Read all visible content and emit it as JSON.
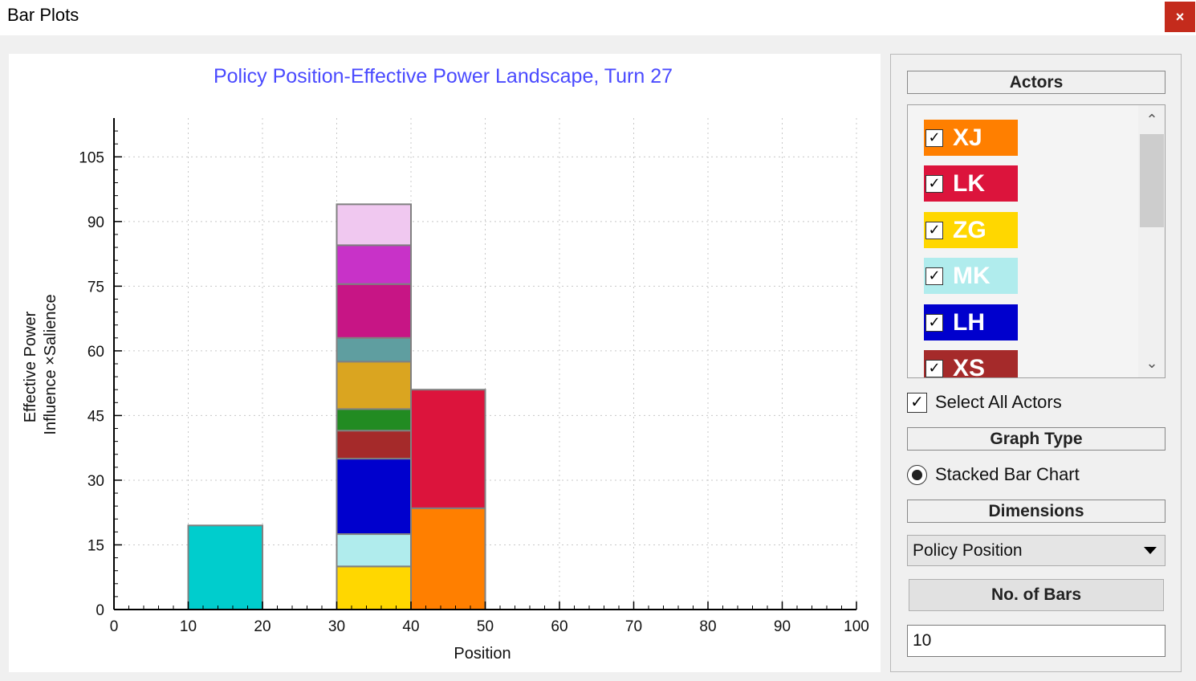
{
  "window": {
    "title": "Bar Plots",
    "close_label": "×"
  },
  "side_panel": {
    "actors_header": "Actors",
    "actors": [
      {
        "label": "XJ",
        "checked": true,
        "color": "#ff7f00"
      },
      {
        "label": "LK",
        "checked": true,
        "color": "#dc143c"
      },
      {
        "label": "ZG",
        "checked": true,
        "color": "#ffd700"
      },
      {
        "label": "MK",
        "checked": true,
        "color": "#b0eced"
      },
      {
        "label": "LH",
        "checked": true,
        "color": "#0000cd"
      },
      {
        "label": "XS",
        "checked": true,
        "color": "#a52a2a"
      }
    ],
    "check_mark": "✓",
    "scroll_up": "⌃",
    "scroll_down": "⌄",
    "select_all_label": "Select All Actors",
    "graph_type_header": "Graph Type",
    "graph_type_option": "Stacked Bar Chart",
    "dimensions_header": "Dimensions",
    "dimension_value": "Policy Position",
    "no_of_bars_label": "No. of Bars",
    "no_of_bars_value": "10"
  },
  "chart_data": {
    "type": "bar",
    "stacked": true,
    "title": "Policy Position-Effective Power Landscape, Turn 27",
    "xlabel": "Position",
    "ylabel_line1": "Effective Power",
    "ylabel_line2": "Influence ×Salience",
    "xlim": [
      0,
      100
    ],
    "ylim": [
      0,
      114
    ],
    "xticks": [
      0,
      10,
      20,
      30,
      40,
      50,
      60,
      70,
      80,
      90,
      100
    ],
    "yticks": [
      0,
      15,
      30,
      45,
      60,
      75,
      90,
      105
    ],
    "grid": true,
    "bars": [
      {
        "x0": 10,
        "x1": 20,
        "segments": [
          {
            "value": 19.5,
            "color": "#00cdcd"
          }
        ]
      },
      {
        "x0": 30,
        "x1": 40,
        "segments": [
          {
            "value": 10,
            "color": "#ffd700"
          },
          {
            "value": 7.5,
            "color": "#b0eced"
          },
          {
            "value": 17.5,
            "color": "#0000cd"
          },
          {
            "value": 6.5,
            "color": "#a52a2a"
          },
          {
            "value": 5,
            "color": "#228b22"
          },
          {
            "value": 11,
            "color": "#daa520"
          },
          {
            "value": 5.5,
            "color": "#5f9ea0"
          },
          {
            "value": 12.5,
            "color": "#c71585"
          },
          {
            "value": 9,
            "color": "#c832c8"
          },
          {
            "value": 9.5,
            "color": "#f0c8f0"
          }
        ]
      },
      {
        "x0": 40,
        "x1": 50,
        "segments": [
          {
            "value": 23.5,
            "color": "#ff7f00"
          },
          {
            "value": 27.5,
            "color": "#dc143c"
          }
        ]
      }
    ]
  }
}
